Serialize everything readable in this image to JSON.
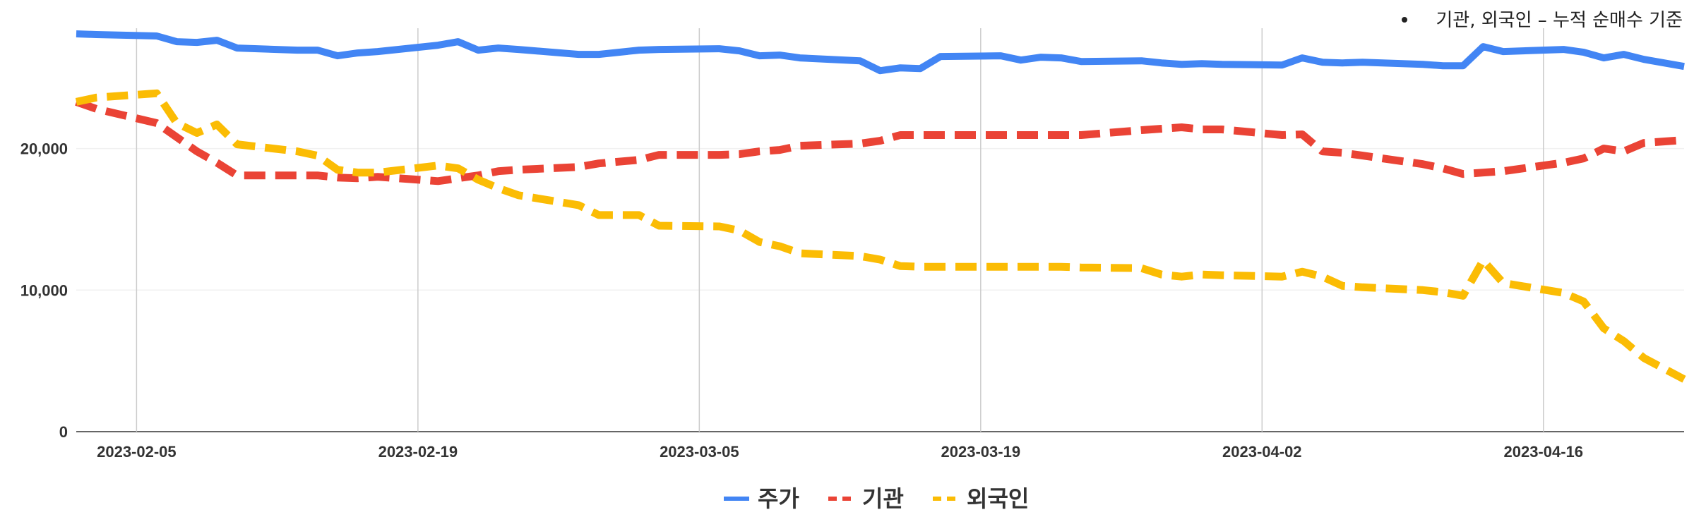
{
  "note": {
    "text": "기관, 외국인 – 누적 순매수 기준"
  },
  "chart_data": {
    "type": "line",
    "title": "",
    "xlabel": "",
    "ylabel": "",
    "ylim": [
      0,
      28500
    ],
    "yticks": [
      0,
      10000,
      20000
    ],
    "ytick_labels": [
      "0",
      "10,000",
      "20,000"
    ],
    "xlim": [
      "2023-02-02",
      "2023-04-23"
    ],
    "xticks": [
      "2023-02-05",
      "2023-02-19",
      "2023-03-05",
      "2023-03-19",
      "2023-04-02",
      "2023-04-16"
    ],
    "grid": "vertical",
    "legend": "bottom",
    "series": [
      {
        "name": "주가",
        "color": "#4285f4",
        "dash": "solid",
        "points": [
          [
            "2023-02-02",
            28100
          ],
          [
            "2023-02-03",
            28050
          ],
          [
            "2023-02-06",
            27950
          ],
          [
            "2023-02-07",
            27550
          ],
          [
            "2023-02-08",
            27500
          ],
          [
            "2023-02-09",
            27650
          ],
          [
            "2023-02-10",
            27100
          ],
          [
            "2023-02-13",
            26950
          ],
          [
            "2023-02-14",
            26950
          ],
          [
            "2023-02-15",
            26550
          ],
          [
            "2023-02-16",
            26750
          ],
          [
            "2023-02-17",
            26850
          ],
          [
            "2023-02-20",
            27300
          ],
          [
            "2023-02-21",
            27550
          ],
          [
            "2023-02-22",
            26950
          ],
          [
            "2023-02-23",
            27100
          ],
          [
            "2023-02-24",
            27000
          ],
          [
            "2023-02-27",
            26650
          ],
          [
            "2023-02-28",
            26650
          ],
          [
            "2023-03-02",
            26950
          ],
          [
            "2023-03-03",
            27000
          ],
          [
            "2023-03-06",
            27050
          ],
          [
            "2023-03-07",
            26900
          ],
          [
            "2023-03-08",
            26550
          ],
          [
            "2023-03-09",
            26600
          ],
          [
            "2023-03-10",
            26400
          ],
          [
            "2023-03-13",
            26200
          ],
          [
            "2023-03-14",
            25500
          ],
          [
            "2023-03-15",
            25700
          ],
          [
            "2023-03-16",
            25650
          ],
          [
            "2023-03-17",
            26500
          ],
          [
            "2023-03-20",
            26550
          ],
          [
            "2023-03-21",
            26250
          ],
          [
            "2023-03-22",
            26450
          ],
          [
            "2023-03-23",
            26400
          ],
          [
            "2023-03-24",
            26150
          ],
          [
            "2023-03-27",
            26200
          ],
          [
            "2023-03-28",
            26050
          ],
          [
            "2023-03-29",
            25950
          ],
          [
            "2023-03-30",
            26000
          ],
          [
            "2023-03-31",
            25950
          ],
          [
            "2023-04-03",
            25900
          ],
          [
            "2023-04-04",
            26400
          ],
          [
            "2023-04-05",
            26100
          ],
          [
            "2023-04-06",
            26050
          ],
          [
            "2023-04-07",
            26100
          ],
          [
            "2023-04-10",
            25950
          ],
          [
            "2023-04-11",
            25850
          ],
          [
            "2023-04-12",
            25850
          ],
          [
            "2023-04-13",
            27200
          ],
          [
            "2023-04-14",
            26850
          ],
          [
            "2023-04-17",
            27000
          ],
          [
            "2023-04-18",
            26800
          ],
          [
            "2023-04-19",
            26400
          ],
          [
            "2023-04-20",
            26650
          ],
          [
            "2023-04-21",
            26300
          ],
          [
            "2023-04-23",
            25800
          ]
        ]
      },
      {
        "name": "기관",
        "color": "#ea4335",
        "dash": "dashed",
        "points": [
          [
            "2023-02-02",
            23300
          ],
          [
            "2023-02-03",
            22800
          ],
          [
            "2023-02-06",
            21800
          ],
          [
            "2023-02-07",
            20800
          ],
          [
            "2023-02-08",
            19800
          ],
          [
            "2023-02-09",
            19000
          ],
          [
            "2023-02-10",
            18100
          ],
          [
            "2023-02-13",
            18100
          ],
          [
            "2023-02-14",
            18100
          ],
          [
            "2023-02-15",
            17950
          ],
          [
            "2023-02-16",
            17900
          ],
          [
            "2023-02-17",
            18000
          ],
          [
            "2023-02-20",
            17700
          ],
          [
            "2023-02-21",
            17900
          ],
          [
            "2023-02-22",
            18100
          ],
          [
            "2023-02-23",
            18400
          ],
          [
            "2023-02-24",
            18500
          ],
          [
            "2023-02-27",
            18700
          ],
          [
            "2023-02-28",
            18950
          ],
          [
            "2023-03-02",
            19200
          ],
          [
            "2023-03-03",
            19550
          ],
          [
            "2023-03-06",
            19550
          ],
          [
            "2023-03-07",
            19600
          ],
          [
            "2023-03-08",
            19800
          ],
          [
            "2023-03-09",
            19900
          ],
          [
            "2023-03-10",
            20200
          ],
          [
            "2023-03-13",
            20350
          ],
          [
            "2023-03-14",
            20550
          ],
          [
            "2023-03-15",
            20950
          ],
          [
            "2023-03-16",
            20950
          ],
          [
            "2023-03-17",
            20950
          ],
          [
            "2023-03-20",
            20950
          ],
          [
            "2023-03-21",
            20950
          ],
          [
            "2023-03-22",
            20950
          ],
          [
            "2023-03-23",
            20950
          ],
          [
            "2023-03-24",
            20950
          ],
          [
            "2023-03-27",
            21300
          ],
          [
            "2023-03-28",
            21400
          ],
          [
            "2023-03-29",
            21500
          ],
          [
            "2023-03-30",
            21350
          ],
          [
            "2023-03-31",
            21350
          ],
          [
            "2023-04-03",
            20950
          ],
          [
            "2023-04-04",
            21000
          ],
          [
            "2023-04-05",
            19800
          ],
          [
            "2023-04-06",
            19700
          ],
          [
            "2023-04-07",
            19500
          ],
          [
            "2023-04-10",
            18900
          ],
          [
            "2023-04-11",
            18600
          ],
          [
            "2023-04-12",
            18200
          ],
          [
            "2023-04-13",
            18300
          ],
          [
            "2023-04-14",
            18400
          ],
          [
            "2023-04-17",
            19000
          ],
          [
            "2023-04-18",
            19300
          ],
          [
            "2023-04-19",
            20000
          ],
          [
            "2023-04-20",
            19800
          ],
          [
            "2023-04-21",
            20400
          ],
          [
            "2023-04-23",
            20600
          ]
        ]
      },
      {
        "name": "외국인",
        "color": "#fbbc04",
        "dash": "dashed",
        "points": [
          [
            "2023-02-02",
            23300
          ],
          [
            "2023-02-03",
            23600
          ],
          [
            "2023-02-06",
            23900
          ],
          [
            "2023-02-07",
            21800
          ],
          [
            "2023-02-08",
            21100
          ],
          [
            "2023-02-09",
            21700
          ],
          [
            "2023-02-10",
            20300
          ],
          [
            "2023-02-13",
            19800
          ],
          [
            "2023-02-14",
            19500
          ],
          [
            "2023-02-15",
            18500
          ],
          [
            "2023-02-16",
            18300
          ],
          [
            "2023-02-17",
            18300
          ],
          [
            "2023-02-20",
            18800
          ],
          [
            "2023-02-21",
            18600
          ],
          [
            "2023-02-22",
            17800
          ],
          [
            "2023-02-23",
            17200
          ],
          [
            "2023-02-24",
            16700
          ],
          [
            "2023-02-27",
            16000
          ],
          [
            "2023-02-28",
            15300
          ],
          [
            "2023-03-02",
            15300
          ],
          [
            "2023-03-03",
            14550
          ],
          [
            "2023-03-06",
            14500
          ],
          [
            "2023-03-07",
            14200
          ],
          [
            "2023-03-08",
            13400
          ],
          [
            "2023-03-09",
            13100
          ],
          [
            "2023-03-10",
            12600
          ],
          [
            "2023-03-13",
            12400
          ],
          [
            "2023-03-14",
            12150
          ],
          [
            "2023-03-15",
            11700
          ],
          [
            "2023-03-16",
            11650
          ],
          [
            "2023-03-17",
            11650
          ],
          [
            "2023-03-20",
            11650
          ],
          [
            "2023-03-21",
            11650
          ],
          [
            "2023-03-22",
            11650
          ],
          [
            "2023-03-23",
            11650
          ],
          [
            "2023-03-24",
            11600
          ],
          [
            "2023-03-27",
            11550
          ],
          [
            "2023-03-28",
            11100
          ],
          [
            "2023-03-29",
            10950
          ],
          [
            "2023-03-30",
            11100
          ],
          [
            "2023-03-31",
            11050
          ],
          [
            "2023-04-03",
            10950
          ],
          [
            "2023-04-04",
            11300
          ],
          [
            "2023-04-05",
            10950
          ],
          [
            "2023-04-06",
            10300
          ],
          [
            "2023-04-07",
            10200
          ],
          [
            "2023-04-10",
            10000
          ],
          [
            "2023-04-11",
            9850
          ],
          [
            "2023-04-12",
            9600
          ],
          [
            "2023-04-13",
            12100
          ],
          [
            "2023-04-14",
            10500
          ],
          [
            "2023-04-17",
            9800
          ],
          [
            "2023-04-18",
            9200
          ],
          [
            "2023-04-19",
            7300
          ],
          [
            "2023-04-20",
            6400
          ],
          [
            "2023-04-21",
            5200
          ],
          [
            "2023-04-23",
            3700
          ]
        ]
      }
    ]
  }
}
